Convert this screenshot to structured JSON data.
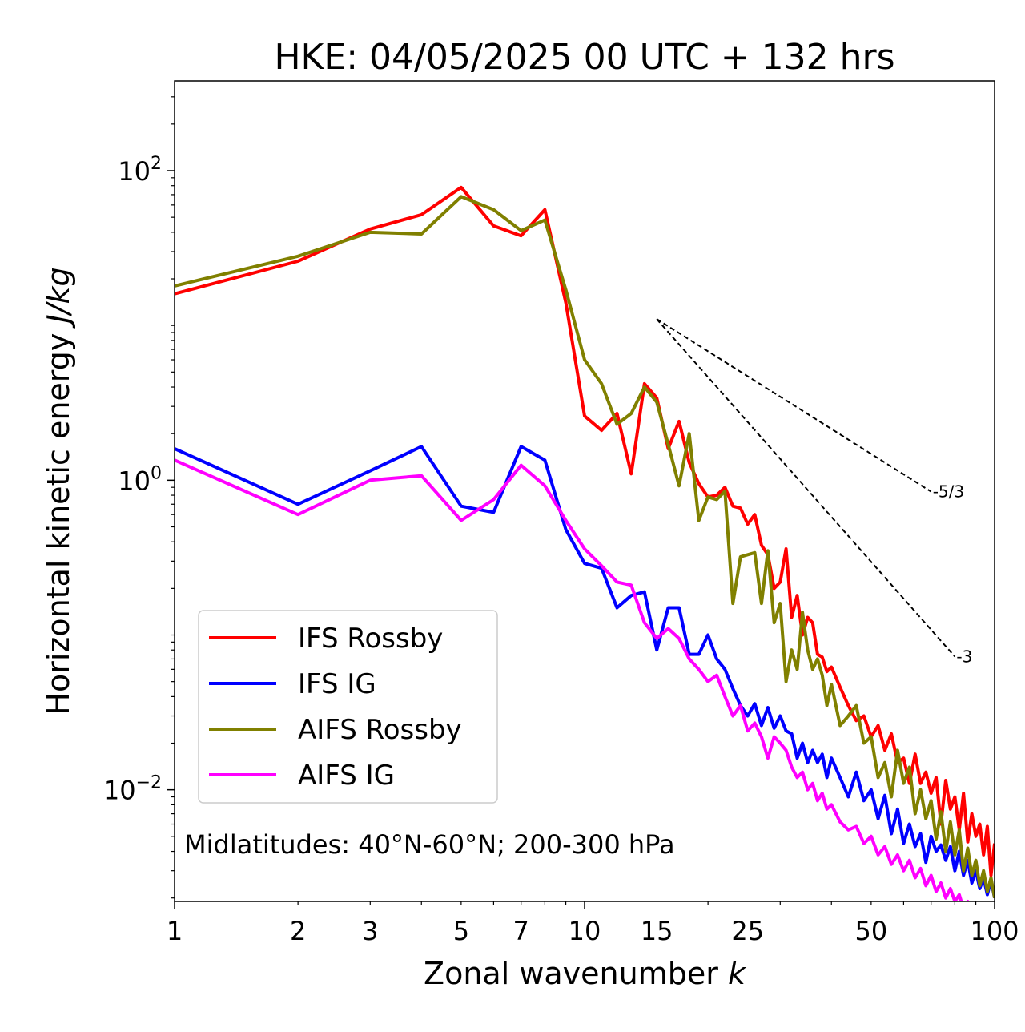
{
  "chart_data": {
    "type": "line",
    "title": "HKE: 04/05/2025 00 UTC + 132 hrs",
    "xlabel": "Zonal wavenumber ",
    "xlabel_var": "k",
    "ylabel": "Horizontal kinetic energy ",
    "ylabel_unit": "J/kg",
    "x_scale": "log",
    "y_scale": "log",
    "xlim": [
      1,
      100
    ],
    "ylim": [
      0.0019,
      380
    ],
    "x_ticks": [
      1,
      2,
      3,
      5,
      7,
      10,
      15,
      25,
      50,
      100
    ],
    "x_tick_labels": [
      "1",
      "2",
      "3",
      "5",
      "7",
      "10",
      "15",
      "25",
      "50",
      "100"
    ],
    "y_ticks": [
      {
        "value": 100,
        "base": "10",
        "exp": "2"
      },
      {
        "value": 1,
        "base": "10",
        "exp": "0"
      },
      {
        "value": 0.01,
        "base": "10",
        "exp": "−2"
      }
    ],
    "grid": false,
    "legend_placement": "lower-left",
    "annotation": "Midlatitudes: 40°N-60°N; 200-300 hPa",
    "reference_slopes": [
      {
        "label": "-5/3",
        "slope": -1.6667,
        "x": [
          15,
          70
        ],
        "y_start": 11.0
      },
      {
        "label": "-3",
        "slope": -3,
        "x": [
          15,
          80
        ],
        "y_start": 11.0
      }
    ],
    "series": [
      {
        "name": "IFS Rossby",
        "color": "#ff0000",
        "x": [
          1,
          2,
          3,
          4,
          5,
          6,
          7,
          8,
          9,
          10,
          11,
          12,
          13,
          14,
          15,
          16,
          17,
          18,
          19,
          20,
          21,
          22,
          23,
          24,
          25,
          26,
          27,
          28,
          29,
          30,
          31,
          32,
          33,
          34,
          35,
          36,
          37,
          38,
          39,
          40,
          42,
          44,
          46,
          48,
          50,
          52,
          54,
          56,
          58,
          60,
          62,
          64,
          66,
          68,
          70,
          72,
          74,
          76,
          78,
          80,
          82,
          84,
          86,
          88,
          90,
          92,
          94,
          96,
          98,
          100
        ],
        "y": [
          16,
          26,
          42,
          52,
          78,
          44,
          38,
          56,
          14,
          2.6,
          2.1,
          2.7,
          1.1,
          4.2,
          3.4,
          1.6,
          2.4,
          1.3,
          0.95,
          0.78,
          0.8,
          0.9,
          0.68,
          0.66,
          0.52,
          0.6,
          0.38,
          0.33,
          0.2,
          0.22,
          0.36,
          0.13,
          0.18,
          0.1,
          0.13,
          0.12,
          0.075,
          0.072,
          0.058,
          0.062,
          0.046,
          0.035,
          0.028,
          0.03,
          0.022,
          0.026,
          0.018,
          0.023,
          0.015,
          0.016,
          0.011,
          0.017,
          0.011,
          0.013,
          0.0095,
          0.012,
          0.006,
          0.0115,
          0.0075,
          0.009,
          0.0055,
          0.0095,
          0.0046,
          0.007,
          0.005,
          0.006,
          0.0038,
          0.0058,
          0.0028,
          0.0045
        ]
      },
      {
        "name": "IFS IG",
        "color": "#0000ff",
        "x": [
          1,
          2,
          3,
          4,
          5,
          6,
          7,
          8,
          9,
          10,
          11,
          12,
          13,
          14,
          15,
          16,
          17,
          18,
          19,
          20,
          21,
          22,
          23,
          24,
          25,
          26,
          27,
          28,
          29,
          30,
          31,
          32,
          33,
          34,
          35,
          36,
          37,
          38,
          39,
          40,
          42,
          44,
          46,
          48,
          50,
          52,
          54,
          56,
          58,
          60,
          62,
          64,
          66,
          68,
          70,
          72,
          74,
          76,
          78,
          80,
          82,
          84,
          86,
          88,
          90,
          92,
          94,
          96,
          98,
          100
        ],
        "y": [
          1.6,
          0.7,
          1.15,
          1.65,
          0.68,
          0.62,
          1.65,
          1.35,
          0.48,
          0.29,
          0.27,
          0.15,
          0.18,
          0.19,
          0.08,
          0.15,
          0.15,
          0.075,
          0.075,
          0.1,
          0.07,
          0.06,
          0.045,
          0.035,
          0.03,
          0.036,
          0.026,
          0.034,
          0.025,
          0.03,
          0.024,
          0.023,
          0.016,
          0.02,
          0.015,
          0.018,
          0.015,
          0.017,
          0.012,
          0.016,
          0.012,
          0.009,
          0.013,
          0.0085,
          0.01,
          0.0065,
          0.0092,
          0.0052,
          0.0075,
          0.0045,
          0.006,
          0.0043,
          0.0052,
          0.0034,
          0.005,
          0.004,
          0.0044,
          0.0035,
          0.0043,
          0.003,
          0.004,
          0.0028,
          0.0035,
          0.0025,
          0.003,
          0.0023,
          0.0027,
          0.0021,
          0.0026,
          0.002
        ]
      },
      {
        "name": "AIFS Rossby",
        "color": "#808000",
        "x": [
          1,
          2,
          3,
          4,
          5,
          6,
          7,
          8,
          9,
          10,
          11,
          12,
          13,
          14,
          15,
          16,
          17,
          18,
          19,
          20,
          21,
          22,
          23,
          24,
          25,
          26,
          27,
          28,
          29,
          30,
          31,
          32,
          33,
          34,
          35,
          36,
          37,
          38,
          39,
          40,
          42,
          44,
          46,
          48,
          50,
          52,
          54,
          56,
          58,
          60,
          62,
          64,
          66,
          68,
          70,
          72,
          74,
          76,
          78,
          80,
          82,
          84,
          86,
          88,
          90,
          92,
          94,
          96,
          98,
          100
        ],
        "y": [
          18,
          28,
          40,
          39,
          68,
          56,
          41,
          48,
          17,
          6.0,
          4.2,
          2.3,
          2.7,
          4.0,
          3.2,
          1.7,
          0.92,
          2.0,
          0.55,
          0.78,
          0.75,
          0.85,
          0.16,
          0.32,
          0.33,
          0.34,
          0.16,
          0.35,
          0.12,
          0.16,
          0.05,
          0.08,
          0.06,
          0.14,
          0.08,
          0.06,
          0.07,
          0.055,
          0.035,
          0.048,
          0.026,
          0.03,
          0.035,
          0.02,
          0.022,
          0.012,
          0.015,
          0.009,
          0.018,
          0.011,
          0.014,
          0.007,
          0.01,
          0.0065,
          0.0085,
          0.0048,
          0.0072,
          0.004,
          0.0062,
          0.0038,
          0.0055,
          0.003,
          0.0042,
          0.0028,
          0.0035,
          0.0024,
          0.003,
          0.0022,
          0.0027,
          0.002
        ]
      },
      {
        "name": "AIFS IG",
        "color": "#ff00ff",
        "x": [
          1,
          2,
          3,
          4,
          5,
          6,
          7,
          8,
          9,
          10,
          11,
          12,
          13,
          14,
          15,
          16,
          17,
          18,
          19,
          20,
          21,
          22,
          23,
          24,
          25,
          26,
          27,
          28,
          29,
          30,
          31,
          32,
          33,
          34,
          35,
          36,
          37,
          38,
          39,
          40,
          42,
          44,
          46,
          48,
          50,
          52,
          54,
          56,
          58,
          60,
          62,
          64,
          66,
          68,
          70,
          72,
          74,
          76,
          78,
          80,
          82,
          84,
          86,
          88,
          90,
          92,
          94,
          96,
          98,
          100
        ],
        "y": [
          1.35,
          0.6,
          1.0,
          1.07,
          0.55,
          0.75,
          1.25,
          0.92,
          0.55,
          0.36,
          0.28,
          0.22,
          0.21,
          0.12,
          0.095,
          0.11,
          0.095,
          0.07,
          0.06,
          0.05,
          0.055,
          0.04,
          0.03,
          0.035,
          0.024,
          0.027,
          0.022,
          0.016,
          0.022,
          0.02,
          0.018,
          0.014,
          0.012,
          0.013,
          0.01,
          0.011,
          0.0085,
          0.0095,
          0.0075,
          0.008,
          0.0062,
          0.0055,
          0.0058,
          0.0045,
          0.005,
          0.0038,
          0.0043,
          0.0033,
          0.0038,
          0.003,
          0.0035,
          0.0027,
          0.0031,
          0.0024,
          0.0028,
          0.0022,
          0.0025,
          0.002,
          0.0023,
          0.0019,
          0.0021,
          0.0017,
          0.0019,
          0.0016,
          0.0017,
          0.0015,
          0.0016,
          0.0014,
          0.0015,
          0.0013
        ]
      }
    ]
  }
}
